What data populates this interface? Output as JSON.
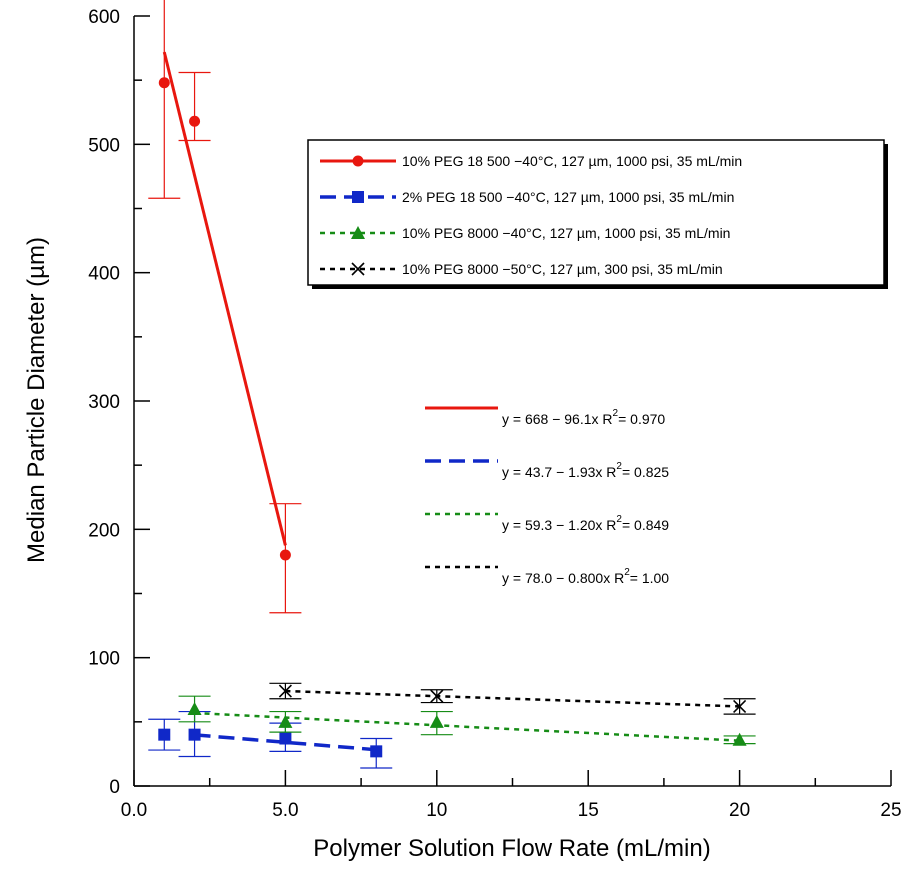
{
  "chart_data": {
    "type": "scatter",
    "xlabel": "Polymer Solution Flow Rate (mL/min)",
    "ylabel": "Median Particle Diameter (µm)",
    "xlim": [
      0,
      25
    ],
    "ylim": [
      0,
      600
    ],
    "x_ticks": [
      "0.0",
      "5.0",
      "10",
      "15",
      "20",
      "25"
    ],
    "x_tick_values": [
      0,
      5,
      10,
      15,
      20,
      25
    ],
    "y_ticks": [
      "0",
      "100",
      "200",
      "300",
      "400",
      "500",
      "600"
    ],
    "y_tick_values": [
      0,
      100,
      200,
      300,
      400,
      500,
      600
    ],
    "grid": false,
    "legend_placement": "top-right",
    "series": [
      {
        "name": "10% PEG 18 500 −40°C, 127 µm, 1000 psi, 35 mL/min",
        "color": "#e8170f",
        "marker": "circle",
        "line_style": "solid",
        "x": [
          1,
          2,
          5
        ],
        "y": [
          548,
          518,
          180
        ],
        "err": [
          [
            90,
            80
          ],
          [
            15,
            38
          ],
          [
            45,
            40
          ]
        ],
        "fit_label": "y = 668 − 96.1x   R",
        "r2": "= 0.970",
        "fit": [
          668,
          -96.1
        ],
        "fit_range": [
          1,
          5
        ]
      },
      {
        "name": "2% PEG 18 500 −40°C, 127 µm, 1000 psi, 35 mL/min",
        "color": "#1028c8",
        "marker": "square",
        "line_style": "dashed",
        "x": [
          1,
          2,
          5,
          8
        ],
        "y": [
          40,
          40,
          37,
          27
        ],
        "err": [
          [
            12,
            12
          ],
          [
            17,
            18
          ],
          [
            10,
            12
          ],
          [
            13,
            10
          ]
        ],
        "fit_label": "y = 43.7 − 1.93x   R",
        "r2": "= 0.825",
        "fit": [
          43.7,
          -1.93
        ],
        "fit_range": [
          2,
          8
        ]
      },
      {
        "name": "10% PEG 8000 −40°C, 127 µm, 1000 psi, 35 mL/min",
        "color": "#168c16",
        "marker": "triangle",
        "line_style": "dotted",
        "x": [
          2,
          5,
          10,
          20
        ],
        "y": [
          60,
          50,
          50,
          36
        ],
        "err": [
          [
            10,
            10
          ],
          [
            8,
            8
          ],
          [
            10,
            8
          ],
          [
            3,
            3
          ]
        ],
        "fit_label": "y = 59.3 − 1.20x   R",
        "r2": "= 0.849",
        "fit": [
          59.3,
          -1.2
        ],
        "fit_range": [
          2,
          20
        ]
      },
      {
        "name": "10% PEG 8000 −50°C, 127 µm, 300 psi, 35 mL/min",
        "color": "#000000",
        "marker": "x",
        "line_style": "dotted",
        "x": [
          5,
          10,
          20
        ],
        "y": [
          74,
          70,
          62
        ],
        "err": [
          [
            6,
            6
          ],
          [
            5,
            5
          ],
          [
            6,
            6
          ]
        ],
        "fit_label": "y = 78.0 − 0.800x   R",
        "r2": "= 1.00",
        "fit": [
          78.0,
          -0.8
        ],
        "fit_range": [
          5,
          20
        ]
      }
    ]
  }
}
